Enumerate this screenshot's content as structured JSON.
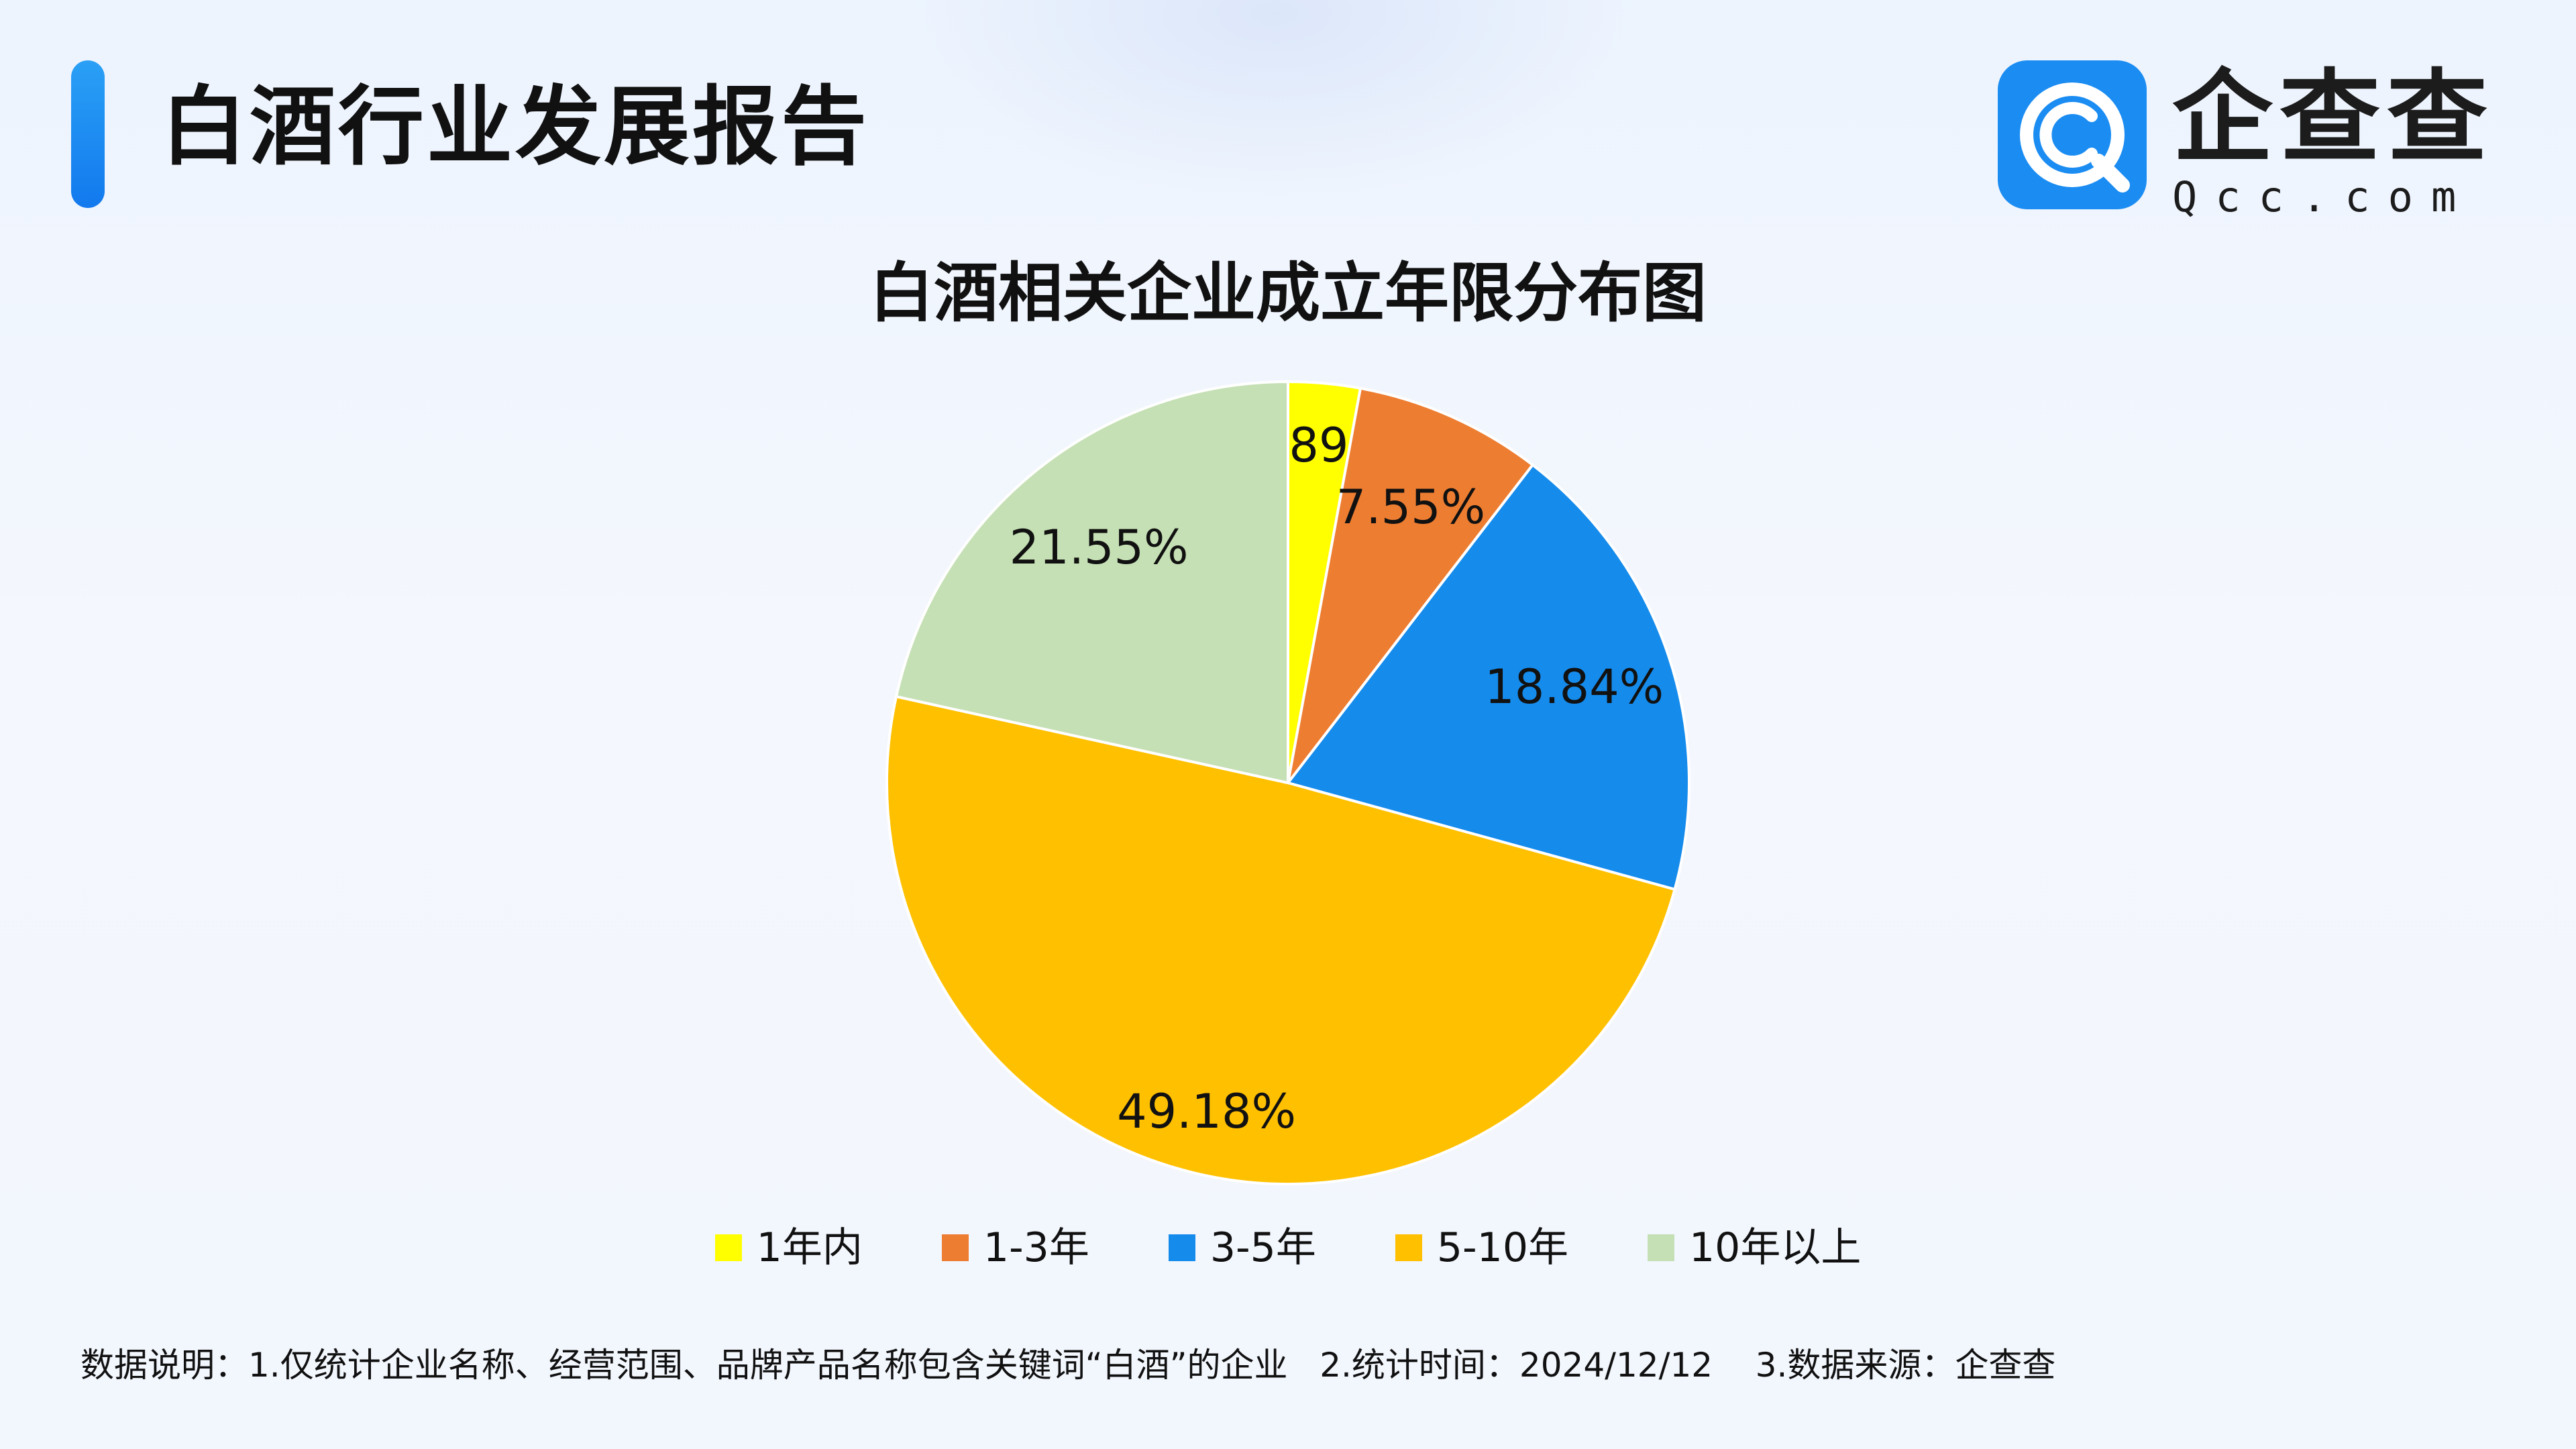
{
  "header": {
    "report_title": "白酒行业发展报告",
    "brand_name": "企查查",
    "brand_domain": "Qcc.com"
  },
  "colors": {
    "accent": "#1a86f0",
    "logo_bg": "#1a8cf2"
  },
  "chart_data": {
    "type": "pie",
    "title": "白酒相关企业成立年限分布图",
    "categories": [
      "1年内",
      "1-3年",
      "3-5年",
      "5-10年",
      "10年以上"
    ],
    "values": [
      2.89,
      7.55,
      18.84,
      49.18,
      21.55
    ],
    "value_labels": [
      "2.89%",
      "7.55%",
      "18.84%",
      "49.18%",
      "21.55%"
    ],
    "colors": [
      "#ffff00",
      "#ed7d31",
      "#158bec",
      "#ffc000",
      "#c5e0b4"
    ],
    "legend_position": "bottom",
    "start_angle": "top, clockwise"
  },
  "footnote": "数据说明：1.仅统计企业名称、经营范围、品牌产品名称包含关键词“白酒”的企业   2.统计时间：2024/12/12    3.数据来源：企查查"
}
